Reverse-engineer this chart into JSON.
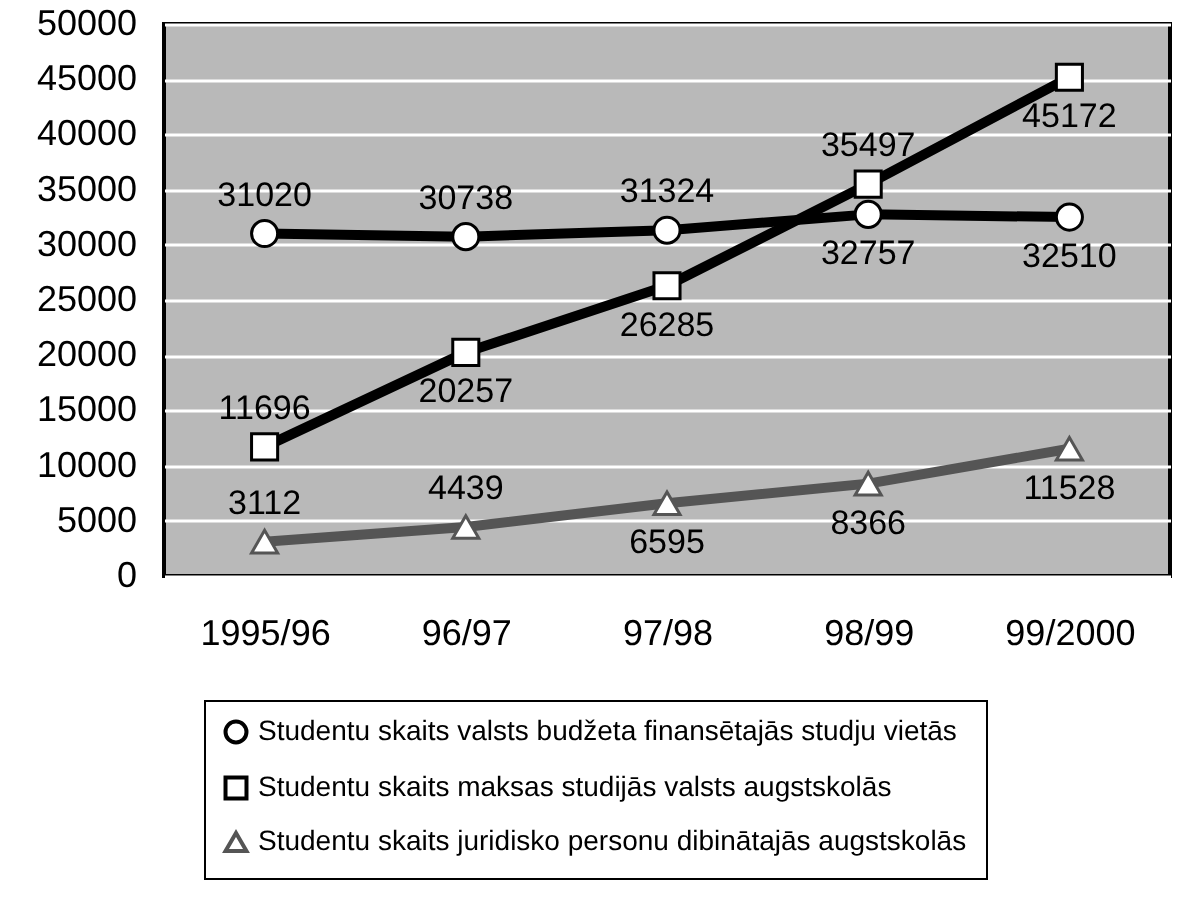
{
  "chart_data": {
    "type": "line",
    "categories": [
      "1995/96",
      "96/97",
      "97/98",
      "98/99",
      "99/2000"
    ],
    "series": [
      {
        "name": "Studentu skaits valsts budžeta finansētajās studju vietās",
        "color": "#000000",
        "marker": "circle",
        "values": [
          31020,
          30738,
          31324,
          32757,
          32510
        ]
      },
      {
        "name": "Studentu skaits maksas studijās valsts augstskolās",
        "color": "#000000",
        "marker": "square",
        "values": [
          11696,
          20257,
          26285,
          35497,
          45172
        ]
      },
      {
        "name": "Studentu skaits juridisko personu dibinātajās augstskolās",
        "color": "#555555",
        "marker": "triangle",
        "values": [
          3112,
          4439,
          6595,
          8366,
          11528
        ]
      }
    ],
    "ylim": [
      0,
      50000
    ],
    "yticks": [
      0,
      5000,
      10000,
      15000,
      20000,
      25000,
      30000,
      35000,
      40000,
      45000,
      50000
    ],
    "grid": "y",
    "legend": "bottom",
    "data_labels": true
  }
}
